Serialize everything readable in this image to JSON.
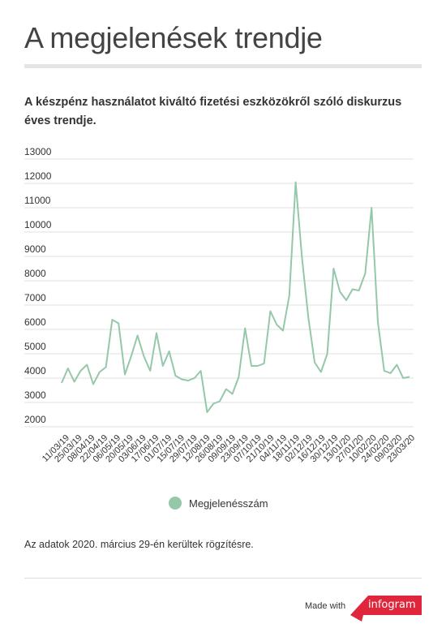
{
  "title": "A megjelenések trendje",
  "subtitle": "A készpénz használatot kiváltó fizetési eszközökről szóló diskurzus éves trendje.",
  "footnote": "Az adatok 2020. március 29-én kerültek rögzítésre.",
  "made_with": "Made with",
  "brand": "infogram",
  "colors": {
    "line": "#94c8a9",
    "grid": "#e2e2e2",
    "brand": "#e0263a"
  },
  "chart_data": {
    "type": "line",
    "title": "",
    "xlabel": "",
    "ylabel": "",
    "ylim": [
      2000,
      13000
    ],
    "yticks": [
      2000,
      3000,
      4000,
      5000,
      6000,
      7000,
      8000,
      9000,
      10000,
      11000,
      12000,
      13000
    ],
    "grid": true,
    "legend_position": "bottom",
    "x_tick_labels": [
      "11/03/19",
      "25/03/19",
      "08/04/19",
      "22/04/19",
      "06/05/19",
      "20/05/19",
      "03/06/19",
      "17/06/19",
      "01/07/19",
      "15/07/19",
      "29/07/19",
      "12/08/19",
      "26/08/19",
      "09/09/19",
      "23/09/19",
      "07/10/19",
      "21/10/19",
      "04/11/19",
      "18/11/19",
      "02/12/19",
      "16/12/19",
      "30/12/19",
      "13/01/20",
      "27/01/20",
      "10/02/20",
      "24/02/20",
      "09/03/20",
      "23/03/20"
    ],
    "series": [
      {
        "name": "Megjelenésszám",
        "values": [
          3800,
          4400,
          3850,
          4300,
          4550,
          3750,
          4250,
          4450,
          6400,
          6250,
          4150,
          4900,
          5750,
          4900,
          4300,
          5850,
          4500,
          5100,
          4100,
          3950,
          3900,
          4000,
          4300,
          2600,
          2950,
          3050,
          3550,
          3350,
          4050,
          6050,
          4500,
          4500,
          4600,
          6750,
          6200,
          5950,
          7400,
          12050,
          8950,
          6500,
          4650,
          4250,
          5000,
          8500,
          7550,
          7200,
          7650,
          7600,
          8300,
          11000,
          6300,
          4300,
          4200,
          4550,
          4000,
          4050
        ]
      }
    ]
  }
}
